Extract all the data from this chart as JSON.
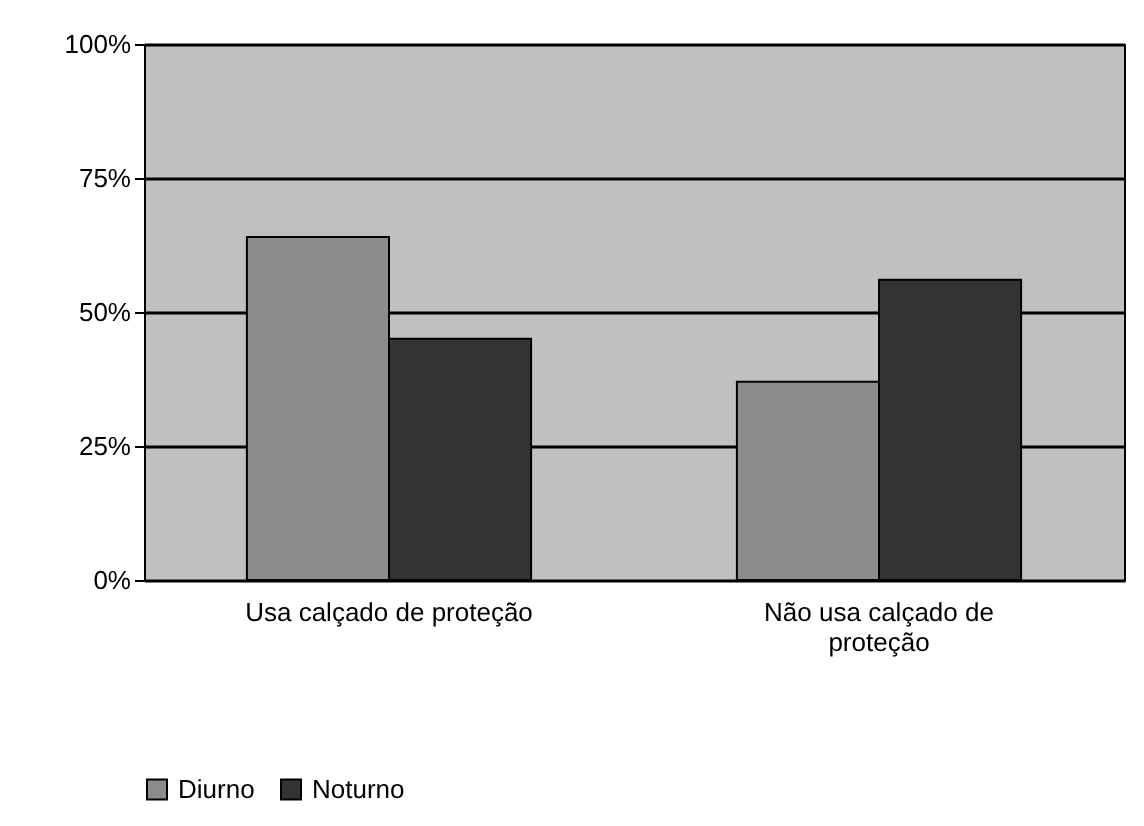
{
  "chart_data": {
    "type": "bar",
    "categories": [
      "Usa calçado de proteção",
      "Não usa calçado de proteção"
    ],
    "series": [
      {
        "name": "Diurno",
        "color": "#8c8c8c",
        "values": [
          64,
          37
        ]
      },
      {
        "name": "Noturno",
        "color": "#333333",
        "values": [
          45,
          56
        ]
      }
    ],
    "ylim": [
      0,
      100
    ],
    "yticks": [
      {
        "value": 0,
        "label": "0%"
      },
      {
        "value": 25,
        "label": "25%"
      },
      {
        "value": 50,
        "label": "50%"
      },
      {
        "value": 75,
        "label": "75%"
      },
      {
        "value": 100,
        "label": "100%"
      }
    ],
    "grid": "y",
    "legend": "bottom"
  }
}
